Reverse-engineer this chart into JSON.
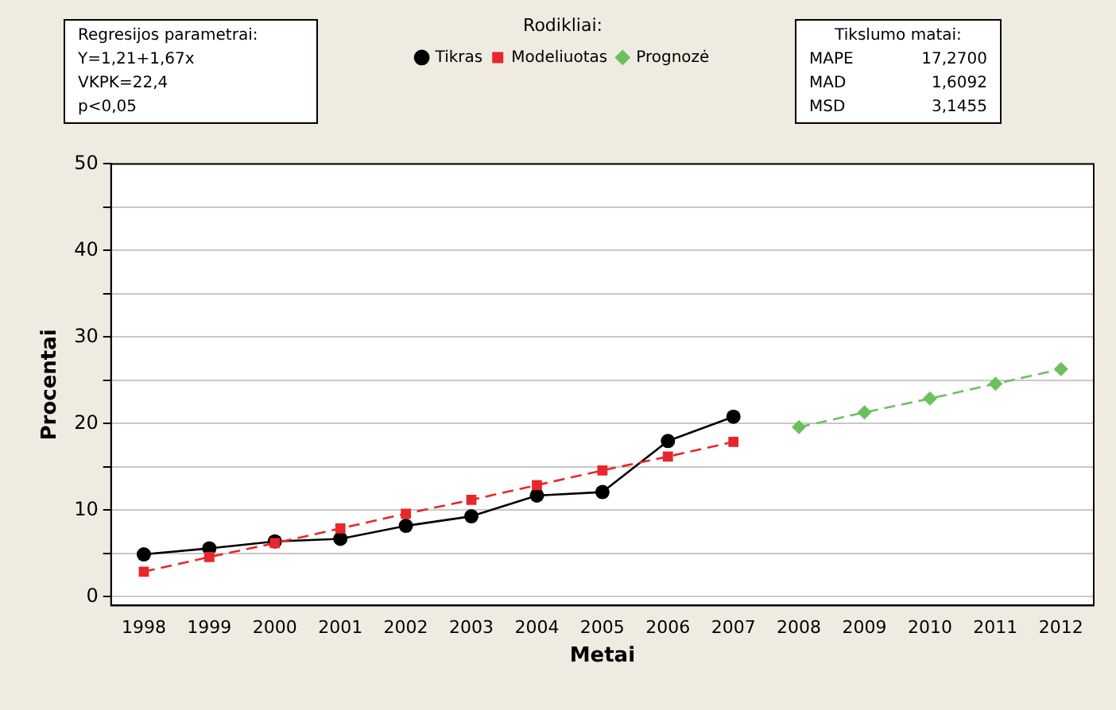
{
  "chart_data": {
    "type": "line",
    "xlabel": "Metai",
    "ylabel": "Procentai",
    "legend_title": "Rodikliai:",
    "legend": "top",
    "categories": [
      "1998",
      "1999",
      "2000",
      "2001",
      "2002",
      "2003",
      "2004",
      "2005",
      "2006",
      "2007",
      "2008",
      "2009",
      "2010",
      "2011",
      "2012"
    ],
    "series": [
      {
        "name": "Tikras",
        "color": "#000000",
        "marker": "circle",
        "line_style": "solid",
        "values": [
          4.9,
          5.6,
          6.4,
          6.7,
          8.2,
          9.3,
          11.7,
          12.1,
          18.0,
          20.8,
          null,
          null,
          null,
          null,
          null
        ]
      },
      {
        "name": "Modeliuotas",
        "color": "#e8262b",
        "marker": "square",
        "line_style": "dashed",
        "values": [
          2.9,
          4.6,
          6.2,
          7.9,
          9.6,
          11.2,
          12.9,
          14.6,
          16.2,
          17.9,
          null,
          null,
          null,
          null,
          null
        ]
      },
      {
        "name": "Prognozė",
        "color": "#6cbf5f",
        "marker": "diamond",
        "line_style": "dashed",
        "values": [
          null,
          null,
          null,
          null,
          null,
          null,
          null,
          null,
          null,
          null,
          19.6,
          21.3,
          22.9,
          24.6,
          26.3
        ]
      }
    ],
    "ylim": [
      -1,
      50
    ],
    "yticks": [
      0,
      {
        "value": 5,
        "label": null
      },
      10,
      {
        "value": 15,
        "label": null
      },
      20,
      {
        "value": 25,
        "label": null
      },
      30,
      {
        "value": 35,
        "label": null
      },
      40,
      {
        "value": 45,
        "label": null
      },
      50
    ],
    "grid": "y",
    "annotations": [
      "Regresijos parametrai:",
      "Y=1,21+1,67x",
      "VKPK=22,4",
      "p<0,05",
      "Tikslumo matai:",
      "MAPE 17,2700",
      "MAD 1,6092",
      "MSD 3,1455"
    ]
  }
}
